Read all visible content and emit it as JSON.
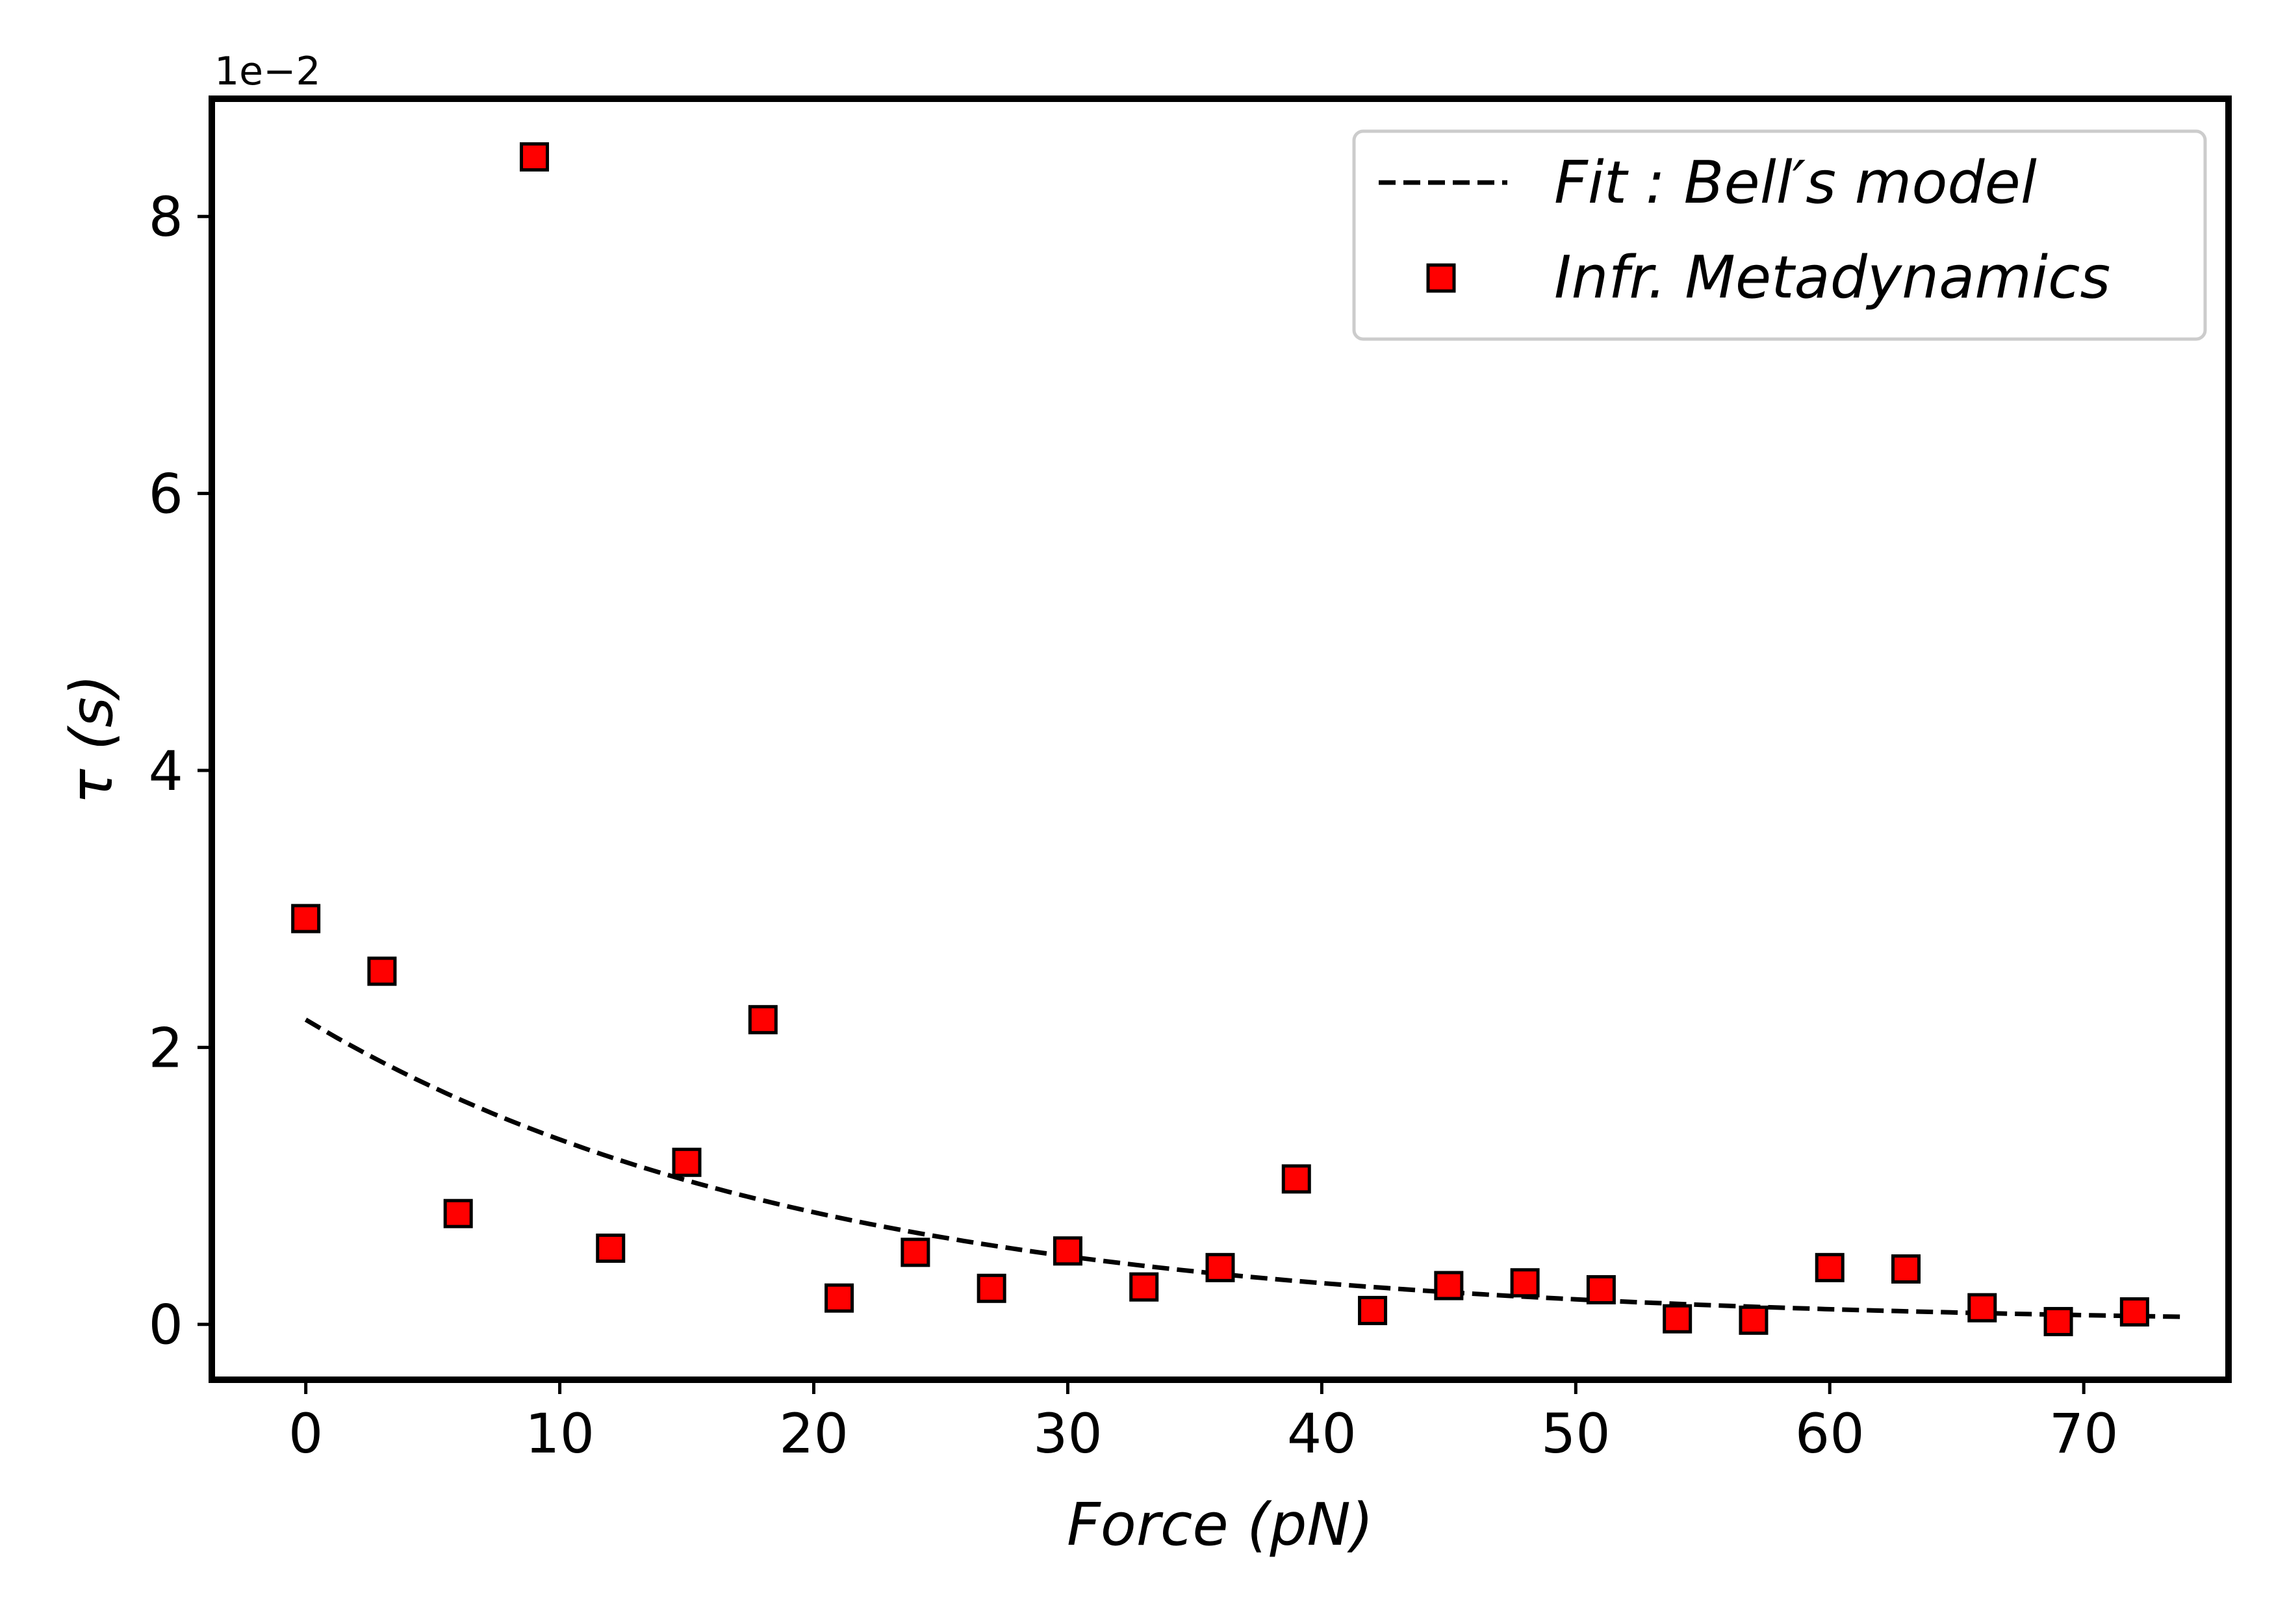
{
  "chart_data": {
    "type": "scatter",
    "xlabel": "Force (pN)",
    "ylabel": "τ (s)",
    "y_scale_label": "1e−2",
    "xlim": [
      -3.7,
      75.7
    ],
    "ylim": [
      -0.4,
      8.85
    ],
    "x_ticks": [
      0,
      10,
      20,
      30,
      40,
      50,
      60,
      70
    ],
    "y_ticks": [
      0,
      2,
      4,
      6,
      8
    ],
    "grid": false,
    "legend_position": "top-right",
    "series": [
      {
        "name": "Fit: Bell's model",
        "kind": "line",
        "style": "dashed",
        "color": "#000000",
        "model": "exponential",
        "tau0": 2.2,
        "decay_per_pN": 0.05,
        "x_range": [
          0,
          74
        ]
      },
      {
        "name": "Infr. Metadynamics",
        "kind": "scatter",
        "marker": "square",
        "color": "#ff0000",
        "edge_color": "#000000",
        "x": [
          0,
          3,
          6,
          9,
          12,
          15,
          18,
          21,
          24,
          27,
          30,
          33,
          36,
          39,
          42,
          45,
          48,
          51,
          54,
          57,
          60,
          63,
          66,
          69,
          72
        ],
        "y": [
          2.93,
          2.55,
          0.8,
          8.43,
          0.55,
          1.17,
          2.2,
          0.19,
          0.52,
          0.26,
          0.53,
          0.27,
          0.41,
          1.05,
          0.1,
          0.28,
          0.3,
          0.25,
          0.04,
          0.03,
          0.41,
          0.4,
          0.12,
          0.02,
          0.09
        ]
      }
    ]
  },
  "legend": {
    "fit_label": "Fit :  Bell′s model",
    "scatter_label": "Infr.  Metadynamics"
  }
}
